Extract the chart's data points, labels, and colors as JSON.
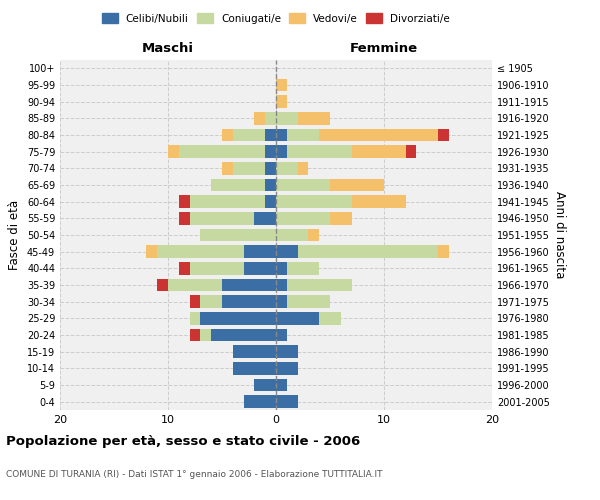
{
  "age_groups": [
    "0-4",
    "5-9",
    "10-14",
    "15-19",
    "20-24",
    "25-29",
    "30-34",
    "35-39",
    "40-44",
    "45-49",
    "50-54",
    "55-59",
    "60-64",
    "65-69",
    "70-74",
    "75-79",
    "80-84",
    "85-89",
    "90-94",
    "95-99",
    "100+"
  ],
  "birth_years": [
    "2001-2005",
    "1996-2000",
    "1991-1995",
    "1986-1990",
    "1981-1985",
    "1976-1980",
    "1971-1975",
    "1966-1970",
    "1961-1965",
    "1956-1960",
    "1951-1955",
    "1946-1950",
    "1941-1945",
    "1936-1940",
    "1931-1935",
    "1926-1930",
    "1921-1925",
    "1916-1920",
    "1911-1915",
    "1906-1910",
    "≤ 1905"
  ],
  "males": {
    "celibi": [
      3,
      2,
      4,
      4,
      6,
      7,
      5,
      5,
      3,
      3,
      0,
      2,
      1,
      1,
      1,
      1,
      1,
      0,
      0,
      0,
      0
    ],
    "coniugati": [
      0,
      0,
      0,
      0,
      1,
      1,
      2,
      5,
      5,
      8,
      7,
      6,
      7,
      5,
      3,
      8,
      3,
      1,
      0,
      0,
      0
    ],
    "vedovi": [
      0,
      0,
      0,
      0,
      0,
      0,
      0,
      0,
      0,
      1,
      0,
      0,
      0,
      0,
      1,
      1,
      1,
      1,
      0,
      0,
      0
    ],
    "divorziati": [
      0,
      0,
      0,
      0,
      1,
      0,
      1,
      1,
      1,
      0,
      0,
      1,
      1,
      0,
      0,
      0,
      0,
      0,
      0,
      0,
      0
    ]
  },
  "females": {
    "nubili": [
      2,
      1,
      2,
      2,
      1,
      4,
      1,
      1,
      1,
      2,
      0,
      0,
      0,
      0,
      0,
      1,
      1,
      0,
      0,
      0,
      0
    ],
    "coniugate": [
      0,
      0,
      0,
      0,
      0,
      2,
      4,
      6,
      3,
      13,
      3,
      5,
      7,
      5,
      2,
      6,
      3,
      2,
      0,
      0,
      0
    ],
    "vedove": [
      0,
      0,
      0,
      0,
      0,
      0,
      0,
      0,
      0,
      1,
      1,
      2,
      5,
      5,
      1,
      5,
      11,
      3,
      1,
      1,
      0
    ],
    "divorziate": [
      0,
      0,
      0,
      0,
      0,
      0,
      0,
      0,
      0,
      0,
      0,
      0,
      0,
      0,
      0,
      1,
      1,
      0,
      0,
      0,
      0
    ]
  },
  "colors": {
    "celibi": "#3b6ea5",
    "coniugati": "#c5d9a0",
    "vedovi": "#f5c06a",
    "divorziati": "#cc3333"
  },
  "title": "Popolazione per età, sesso e stato civile - 2006",
  "subtitle": "COMUNE DI TURANIA (RI) - Dati ISTAT 1° gennaio 2006 - Elaborazione TUTTITALIA.IT",
  "xlabel_left": "Maschi",
  "xlabel_right": "Femmine",
  "ylabel_left": "Fasce di età",
  "ylabel_right": "Anni di nascita",
  "xlim": 20,
  "legend_labels": [
    "Celibi/Nubili",
    "Coniugati/e",
    "Vedovi/e",
    "Divorziati/e"
  ],
  "background_color": "#ffffff",
  "plot_bg_color": "#f0f0f0",
  "grid_color": "#cccccc"
}
